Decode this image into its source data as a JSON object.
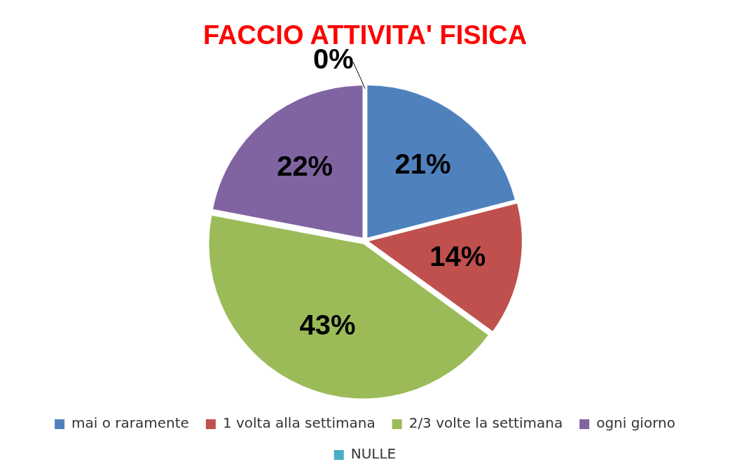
{
  "chart_data": {
    "type": "pie",
    "title": "FACCIO ATTIVITA' FISICA",
    "categories": [
      "mai o raramente",
      "1 volta alla settimana",
      "2/3 volte la settimana",
      "ogni giorno",
      "NULLE"
    ],
    "values": [
      21,
      14,
      43,
      22,
      0
    ],
    "colors": [
      "#4f81bd",
      "#c0504d",
      "#9bbb59",
      "#8064a2",
      "#4bacc6"
    ],
    "value_labels": [
      "21%",
      "14%",
      "43%",
      "22%",
      "0%"
    ],
    "legend": "bottom"
  }
}
